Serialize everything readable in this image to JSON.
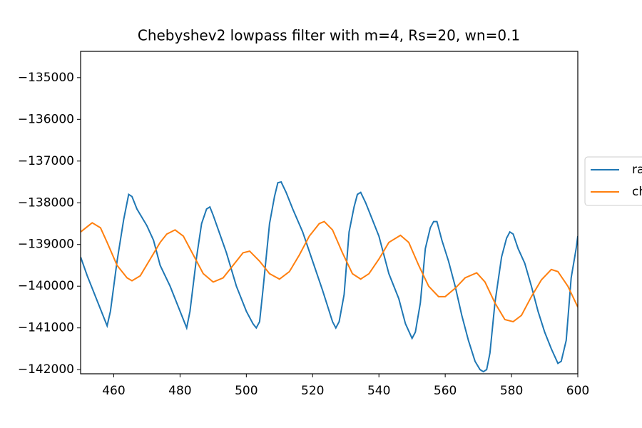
{
  "chart_data": {
    "type": "line",
    "title": "Chebyshev2 lowpass filter with m=4, Rs=20, wn=0.1",
    "xlim": [
      450,
      600
    ],
    "ylim": [
      -142100,
      -134370
    ],
    "xticks": [
      460,
      480,
      500,
      520,
      540,
      560,
      580,
      600
    ],
    "yticks": [
      {
        "value": -135000,
        "label": "−135000"
      },
      {
        "value": -136000,
        "label": "−136000"
      },
      {
        "value": -137000,
        "label": "−137000"
      },
      {
        "value": -138000,
        "label": "−138000"
      },
      {
        "value": -139000,
        "label": "−139000"
      },
      {
        "value": -140000,
        "label": "−140000"
      },
      {
        "value": -141000,
        "label": "−141000"
      },
      {
        "value": -142000,
        "label": "−142000"
      }
    ],
    "legend": "right",
    "series": [
      {
        "name": "ra",
        "color": "#1f77b4",
        "x": [
          450,
          452,
          454,
          456,
          458,
          459,
          461,
          463,
          464.5,
          465.5,
          467,
          470,
          472,
          474,
          477,
          480,
          482,
          483,
          485,
          486.5,
          488,
          489,
          490,
          492,
          494,
          497,
          500,
          502,
          503,
          504,
          505,
          507,
          508.5,
          509.5,
          510.5,
          512,
          514,
          517,
          520,
          523,
          526,
          527,
          528,
          529.5,
          531,
          532.5,
          533.5,
          534.5,
          536,
          537.5,
          540,
          543,
          546,
          548,
          550,
          551,
          552.5,
          554,
          555.5,
          556.5,
          557.5,
          559,
          561,
          563,
          565,
          567,
          569,
          570.5,
          571.5,
          572.5,
          573.5,
          575,
          577,
          578.5,
          579.5,
          580.5,
          582,
          584,
          586,
          588,
          590,
          592,
          594,
          595,
          596.5,
          598,
          599.5,
          600
        ],
        "values": [
          -139300,
          -139750,
          -140150,
          -140550,
          -140950,
          -140600,
          -139400,
          -138400,
          -137800,
          -137850,
          -138150,
          -138550,
          -138900,
          -139500,
          -140000,
          -140600,
          -141000,
          -140600,
          -139300,
          -138500,
          -138150,
          -138100,
          -138300,
          -138750,
          -139200,
          -140000,
          -140600,
          -140900,
          -141000,
          -140850,
          -140100,
          -138500,
          -137850,
          -137520,
          -137500,
          -137750,
          -138150,
          -138700,
          -139400,
          -140100,
          -140850,
          -141000,
          -140850,
          -140200,
          -138700,
          -138100,
          -137800,
          -137750,
          -138000,
          -138300,
          -138800,
          -139700,
          -140300,
          -140900,
          -141250,
          -141100,
          -140400,
          -139100,
          -138600,
          -138450,
          -138450,
          -138900,
          -139400,
          -140000,
          -140700,
          -141300,
          -141800,
          -142000,
          -142050,
          -142000,
          -141600,
          -140400,
          -139300,
          -138850,
          -138700,
          -138750,
          -139100,
          -139450,
          -140000,
          -140600,
          -141100,
          -141500,
          -141850,
          -141800,
          -141300,
          -139800,
          -139100,
          -138800
        ]
      },
      {
        "name": "ch",
        "color": "#ff7f0e",
        "x": [
          450,
          453.5,
          456,
          458,
          461,
          464,
          465.5,
          468,
          471,
          474,
          476,
          478.5,
          481,
          484,
          487,
          490,
          493,
          496,
          499,
          501,
          504,
          507,
          510,
          513,
          516,
          519,
          522,
          523.5,
          526,
          529,
          532,
          534.5,
          537,
          540,
          543,
          546.5,
          549,
          552,
          555,
          558,
          560,
          563,
          566,
          569.5,
          572,
          575,
          578,
          580.5,
          583,
          586,
          589,
          592,
          594,
          597,
          600
        ],
        "values": [
          -138700,
          -138480,
          -138600,
          -138950,
          -139500,
          -139800,
          -139870,
          -139750,
          -139350,
          -138950,
          -138750,
          -138650,
          -138800,
          -139250,
          -139700,
          -139900,
          -139800,
          -139500,
          -139200,
          -139160,
          -139400,
          -139700,
          -139830,
          -139650,
          -139250,
          -138800,
          -138500,
          -138450,
          -138650,
          -139200,
          -139700,
          -139830,
          -139700,
          -139350,
          -138950,
          -138780,
          -138950,
          -139500,
          -140000,
          -140250,
          -140250,
          -140050,
          -139800,
          -139680,
          -139900,
          -140400,
          -140800,
          -140850,
          -140700,
          -140250,
          -139850,
          -139600,
          -139650,
          -140000,
          -140500
        ]
      }
    ]
  }
}
